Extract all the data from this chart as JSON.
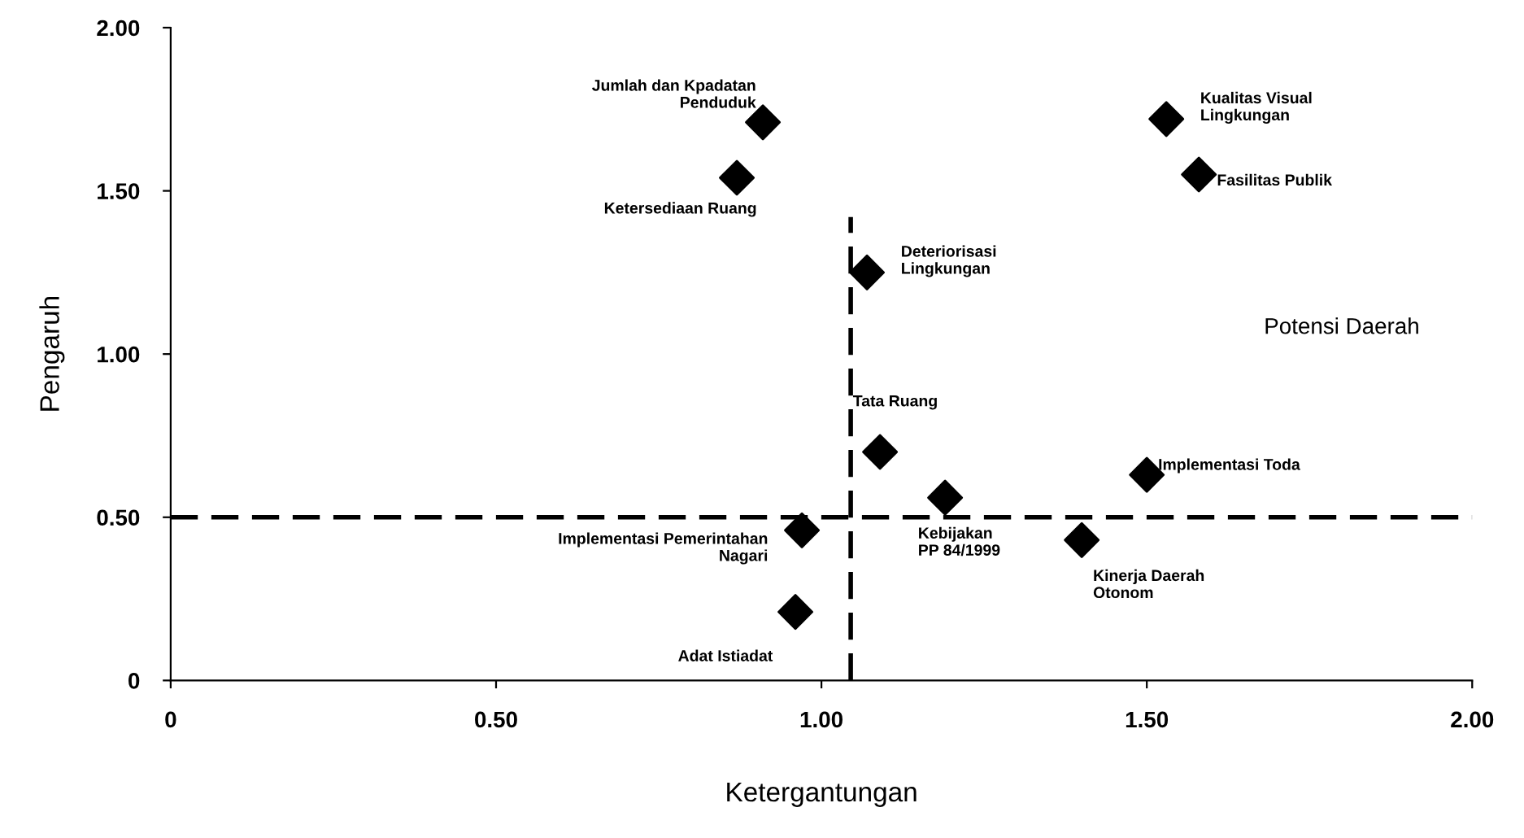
{
  "chart_data": {
    "type": "scatter",
    "xlabel": "Ketergantungan",
    "ylabel": "Pengaruh",
    "x": [
      0.91,
      0.87,
      1.53,
      1.58,
      1.07,
      1.09,
      1.19,
      1.5,
      1.4,
      0.97,
      0.96
    ],
    "series": [
      {
        "color": "#000000",
        "values": [
          1.71,
          1.54,
          1.72,
          1.55,
          1.25,
          0.7,
          0.56,
          0.63,
          0.43,
          0.46,
          0.21
        ]
      }
    ],
    "marker": "diamond",
    "xlim": [
      0,
      2
    ],
    "ylim": [
      0,
      2
    ],
    "xticks": [
      0,
      {
        "value": 0.5,
        "label": "0.50"
      },
      {
        "value": 1,
        "label": "1.00"
      },
      {
        "value": 1.5,
        "label": "1.50"
      },
      {
        "value": 2,
        "label": "2.00"
      }
    ],
    "yticks": [
      0,
      {
        "value": 0.5,
        "label": "0.50"
      },
      {
        "value": 1,
        "label": "1.00"
      },
      {
        "value": 1.5,
        "label": "1.50"
      },
      {
        "value": 2,
        "label": "2.00"
      }
    ],
    "grid": false,
    "legend": false,
    "ref_lines": [
      {
        "axis": "x",
        "value": 1.045,
        "color": "#000000",
        "line_style": "dashed"
      },
      {
        "axis": "y",
        "value": 0.5,
        "color": "#000000",
        "line_style": "dashed"
      }
    ],
    "annotations": [
      {
        "text": "Jumlah dan Kpadatan\nPenduduk",
        "x": 0.91,
        "y": 1.71
      },
      {
        "text": "Ketersediaan Ruang",
        "x": 0.87,
        "y": 1.54
      },
      {
        "text": "Kualitas Visual\nLingkungan",
        "x": 1.53,
        "y": 1.72
      },
      {
        "text": "Fasilitas Publik",
        "x": 1.58,
        "y": 1.55
      },
      {
        "text": "Deteriorisasi\nLingkungan",
        "x": 1.07,
        "y": 1.25
      },
      {
        "text": "Tata Ruang",
        "x": 1.09,
        "y": 0.7
      },
      {
        "text": "Kebijakan\nPP 84/1999",
        "x": 1.19,
        "y": 0.56
      },
      {
        "text": "Implementasi Toda",
        "x": 1.5,
        "y": 0.63
      },
      {
        "text": "Kinerja Daerah\nOtonom",
        "x": 1.4,
        "y": 0.43
      },
      {
        "text": "Implementasi Pemerintahan\nNagari",
        "x": 0.97,
        "y": 0.46
      },
      {
        "text": "Adat Istiadat",
        "x": 0.96,
        "y": 0.21
      },
      "Potensi Daerah"
    ]
  }
}
